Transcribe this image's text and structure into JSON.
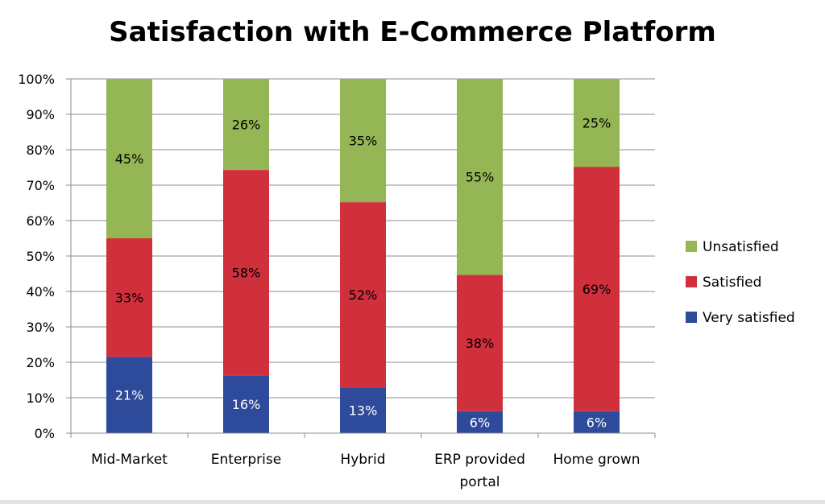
{
  "chart_data": {
    "type": "bar",
    "stacked": true,
    "title": "Satisfaction with E-Commerce Platform",
    "xlabel": "",
    "ylabel": "",
    "ylim": [
      0,
      100
    ],
    "y_ticks": [
      "0%",
      "10%",
      "20%",
      "30%",
      "40%",
      "50%",
      "60%",
      "70%",
      "80%",
      "90%",
      "100%"
    ],
    "grid": true,
    "legend_position": "right",
    "categories": [
      [
        "Mid-Market"
      ],
      [
        "Enterprise"
      ],
      [
        "Hybrid"
      ],
      [
        "ERP provided",
        "portal"
      ],
      [
        "Home grown"
      ]
    ],
    "series": [
      {
        "name": "Very satisfied",
        "color": "#2e4a9a",
        "label_color": "#ffffff",
        "values": [
          21.5,
          16.3,
          12.9,
          6.2,
          6.2
        ],
        "labels": [
          "21%",
          "16%",
          "13%",
          "6%",
          "6%"
        ]
      },
      {
        "name": "Satisfied",
        "color": "#d02f3c",
        "label_color": "#000000",
        "values": [
          33.5,
          58,
          52.3,
          38.5,
          69
        ],
        "labels": [
          "33%",
          "58%",
          "52%",
          "38%",
          "69%"
        ]
      },
      {
        "name": "Unsatisfied",
        "color": "#95b654",
        "label_color": "#000000",
        "values": [
          45,
          25.7,
          34.8,
          55.3,
          24.8
        ],
        "labels": [
          "45%",
          "26%",
          "35%",
          "55%",
          "25%"
        ]
      }
    ],
    "legend_order": [
      2,
      1,
      0
    ]
  }
}
